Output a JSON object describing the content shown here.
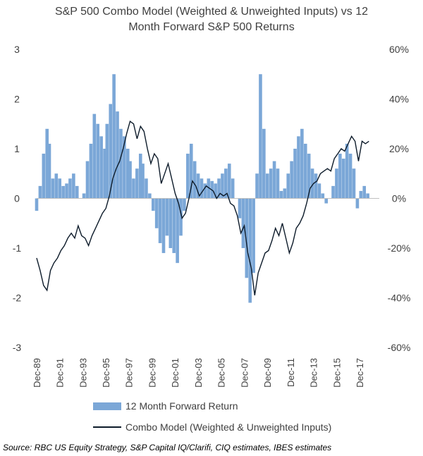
{
  "chart_data": {
    "type": "bar+line",
    "title": "S&P 500 Combo Model (Weighted & Unweighted Inputs) vs 12 Month Forward S&P 500 Returns",
    "title_lines": [
      "S&P 500 Combo Model (Weighted & Unweighted Inputs) vs 12",
      "Month Forward S&P 500 Returns"
    ],
    "left_axis": {
      "ylim": [
        -3,
        3
      ],
      "ticks": [
        "3",
        "2",
        "1",
        "0",
        "-1",
        "-2",
        "-3"
      ]
    },
    "right_axis": {
      "ylim": [
        -0.6,
        0.6
      ],
      "ticks": [
        "60%",
        "40%",
        "20%",
        "0%",
        "-20%",
        "-40%",
        "-60%"
      ]
    },
    "x_ticks": [
      "Dec-89",
      "Dec-91",
      "Dec-93",
      "Dec-95",
      "Dec-97",
      "Dec-99",
      "Dec-01",
      "Dec-03",
      "Dec-05",
      "Dec-07",
      "Dec-09",
      "Dec-11",
      "Dec-13",
      "Dec-15",
      "Dec-17"
    ],
    "xlim": [
      1989.9,
      2019.6
    ],
    "series": [
      {
        "name": "12 Month Forward Return",
        "kind": "bar",
        "axis": "right",
        "color": "#7BA7D7",
        "points": [
          [
            1989.9,
            -0.05
          ],
          [
            1990.2,
            0.05
          ],
          [
            1990.5,
            0.18
          ],
          [
            1990.8,
            0.28
          ],
          [
            1991.0,
            0.22
          ],
          [
            1991.3,
            0.08
          ],
          [
            1991.6,
            0.1
          ],
          [
            1991.9,
            0.08
          ],
          [
            1992.2,
            0.05
          ],
          [
            1992.5,
            0.06
          ],
          [
            1992.8,
            0.08
          ],
          [
            1993.1,
            0.1
          ],
          [
            1993.4,
            0.05
          ],
          [
            1993.7,
            0.0
          ],
          [
            1994.0,
            0.02
          ],
          [
            1994.3,
            0.15
          ],
          [
            1994.6,
            0.22
          ],
          [
            1994.9,
            0.34
          ],
          [
            1995.2,
            0.3
          ],
          [
            1995.5,
            0.25
          ],
          [
            1995.8,
            0.2
          ],
          [
            1996.0,
            0.3
          ],
          [
            1996.3,
            0.38
          ],
          [
            1996.6,
            0.5
          ],
          [
            1996.9,
            0.35
          ],
          [
            1997.2,
            0.28
          ],
          [
            1997.5,
            0.25
          ],
          [
            1997.8,
            0.2
          ],
          [
            1998.0,
            0.15
          ],
          [
            1998.3,
            0.08
          ],
          [
            1998.6,
            0.12
          ],
          [
            1998.9,
            0.18
          ],
          [
            1999.1,
            0.14
          ],
          [
            1999.4,
            0.08
          ],
          [
            1999.7,
            0.02
          ],
          [
            2000.0,
            -0.05
          ],
          [
            2000.3,
            -0.12
          ],
          [
            2000.6,
            -0.18
          ],
          [
            2000.9,
            -0.22
          ],
          [
            2001.2,
            -0.15
          ],
          [
            2001.5,
            -0.2
          ],
          [
            2001.8,
            -0.22
          ],
          [
            2002.1,
            -0.26
          ],
          [
            2002.4,
            -0.15
          ],
          [
            2002.7,
            -0.05
          ],
          [
            2003.0,
            0.18
          ],
          [
            2003.3,
            0.22
          ],
          [
            2003.6,
            0.15
          ],
          [
            2003.9,
            0.1
          ],
          [
            2004.2,
            0.08
          ],
          [
            2004.5,
            0.06
          ],
          [
            2004.8,
            0.08
          ],
          [
            2005.1,
            0.07
          ],
          [
            2005.4,
            0.06
          ],
          [
            2005.7,
            0.08
          ],
          [
            2006.0,
            0.1
          ],
          [
            2006.3,
            0.12
          ],
          [
            2006.6,
            0.14
          ],
          [
            2006.9,
            0.08
          ],
          [
            2007.2,
            0.0
          ],
          [
            2007.5,
            -0.08
          ],
          [
            2007.8,
            -0.2
          ],
          [
            2008.1,
            -0.32
          ],
          [
            2008.4,
            -0.42
          ],
          [
            2008.7,
            -0.3
          ],
          [
            2009.0,
            0.1
          ],
          [
            2009.3,
            0.5
          ],
          [
            2009.6,
            0.28
          ],
          [
            2009.9,
            0.1
          ],
          [
            2010.2,
            0.12
          ],
          [
            2010.5,
            0.15
          ],
          [
            2010.8,
            0.12
          ],
          [
            2011.1,
            0.03
          ],
          [
            2011.4,
            0.04
          ],
          [
            2011.7,
            0.1
          ],
          [
            2012.0,
            0.15
          ],
          [
            2012.3,
            0.2
          ],
          [
            2012.6,
            0.25
          ],
          [
            2012.9,
            0.28
          ],
          [
            2013.2,
            0.22
          ],
          [
            2013.5,
            0.18
          ],
          [
            2013.8,
            0.12
          ],
          [
            2014.1,
            0.1
          ],
          [
            2014.4,
            0.06
          ],
          [
            2014.7,
            0.02
          ],
          [
            2015.0,
            -0.02
          ],
          [
            2015.3,
            0.0
          ],
          [
            2015.6,
            0.05
          ],
          [
            2015.9,
            0.12
          ],
          [
            2016.2,
            0.18
          ],
          [
            2016.5,
            0.16
          ],
          [
            2016.8,
            0.22
          ],
          [
            2017.1,
            0.18
          ],
          [
            2017.4,
            0.12
          ],
          [
            2017.7,
            -0.04
          ],
          [
            2018.0,
            0.03
          ],
          [
            2018.3,
            0.05
          ],
          [
            2018.6,
            0.02
          ]
        ]
      },
      {
        "name": "Combo Model (Weighted & Unweighted Inputs)",
        "kind": "line",
        "axis": "left",
        "color": "#0d1b2a",
        "points": [
          [
            1989.9,
            -1.2
          ],
          [
            1990.2,
            -1.45
          ],
          [
            1990.5,
            -1.75
          ],
          [
            1990.8,
            -1.85
          ],
          [
            1991.1,
            -1.45
          ],
          [
            1991.4,
            -1.3
          ],
          [
            1991.7,
            -1.2
          ],
          [
            1992.0,
            -1.05
          ],
          [
            1992.3,
            -0.95
          ],
          [
            1992.6,
            -0.8
          ],
          [
            1992.9,
            -0.7
          ],
          [
            1993.2,
            -0.8
          ],
          [
            1993.5,
            -0.55
          ],
          [
            1993.8,
            -0.75
          ],
          [
            1994.1,
            -0.8
          ],
          [
            1994.4,
            -0.95
          ],
          [
            1994.7,
            -0.75
          ],
          [
            1995.0,
            -0.6
          ],
          [
            1995.3,
            -0.45
          ],
          [
            1995.6,
            -0.3
          ],
          [
            1995.9,
            -0.2
          ],
          [
            1996.2,
            0.05
          ],
          [
            1996.5,
            0.4
          ],
          [
            1996.8,
            0.6
          ],
          [
            1997.1,
            0.75
          ],
          [
            1997.4,
            1.0
          ],
          [
            1997.7,
            1.3
          ],
          [
            1998.0,
            1.55
          ],
          [
            1998.3,
            1.5
          ],
          [
            1998.6,
            1.2
          ],
          [
            1998.9,
            1.45
          ],
          [
            1999.2,
            1.35
          ],
          [
            1999.5,
            1.0
          ],
          [
            1999.8,
            0.7
          ],
          [
            2000.1,
            0.9
          ],
          [
            2000.4,
            0.8
          ],
          [
            2000.7,
            0.3
          ],
          [
            2001.0,
            0.5
          ],
          [
            2001.3,
            0.7
          ],
          [
            2001.6,
            0.4
          ],
          [
            2001.9,
            0.1
          ],
          [
            2002.2,
            -0.1
          ],
          [
            2002.5,
            -0.4
          ],
          [
            2002.8,
            -0.3
          ],
          [
            2003.1,
            0.0
          ],
          [
            2003.4,
            0.35
          ],
          [
            2003.7,
            0.25
          ],
          [
            2004.0,
            0.05
          ],
          [
            2004.3,
            0.15
          ],
          [
            2004.6,
            0.25
          ],
          [
            2004.9,
            0.2
          ],
          [
            2005.2,
            0.15
          ],
          [
            2005.5,
            0.0
          ],
          [
            2005.8,
            0.1
          ],
          [
            2006.1,
            0.05
          ],
          [
            2006.4,
            0.1
          ],
          [
            2006.7,
            -0.1
          ],
          [
            2007.0,
            -0.15
          ],
          [
            2007.3,
            -0.35
          ],
          [
            2007.6,
            -0.7
          ],
          [
            2007.9,
            -0.55
          ],
          [
            2008.2,
            -1.1
          ],
          [
            2008.5,
            -1.4
          ],
          [
            2008.8,
            -1.95
          ],
          [
            2009.1,
            -1.5
          ],
          [
            2009.4,
            -1.3
          ],
          [
            2009.7,
            -1.1
          ],
          [
            2010.0,
            -1.05
          ],
          [
            2010.3,
            -0.85
          ],
          [
            2010.6,
            -0.6
          ],
          [
            2010.9,
            -0.75
          ],
          [
            2011.2,
            -0.5
          ],
          [
            2011.5,
            -0.8
          ],
          [
            2011.8,
            -1.1
          ],
          [
            2012.1,
            -0.9
          ],
          [
            2012.4,
            -0.6
          ],
          [
            2012.7,
            -0.5
          ],
          [
            2013.0,
            -0.35
          ],
          [
            2013.3,
            -0.1
          ],
          [
            2013.6,
            0.2
          ],
          [
            2013.9,
            0.3
          ],
          [
            2014.2,
            0.35
          ],
          [
            2014.5,
            0.5
          ],
          [
            2014.8,
            0.55
          ],
          [
            2015.1,
            0.6
          ],
          [
            2015.4,
            0.55
          ],
          [
            2015.7,
            0.8
          ],
          [
            2016.0,
            0.9
          ],
          [
            2016.3,
            1.0
          ],
          [
            2016.6,
            0.95
          ],
          [
            2016.9,
            1.1
          ],
          [
            2017.2,
            1.25
          ],
          [
            2017.5,
            1.15
          ],
          [
            2017.8,
            0.75
          ],
          [
            2018.1,
            1.15
          ],
          [
            2018.4,
            1.1
          ],
          [
            2018.7,
            1.15
          ]
        ]
      }
    ],
    "legend": [
      "12 Month Forward Return",
      "Combo Model (Weighted & Unweighted Inputs)"
    ],
    "legend_placement": "bottom",
    "grid": false
  },
  "footer": {
    "source": "Source: RBC US Equity Strategy, S&P Capital IQ/Clarifi, CIQ estimates, IBES estimates"
  }
}
